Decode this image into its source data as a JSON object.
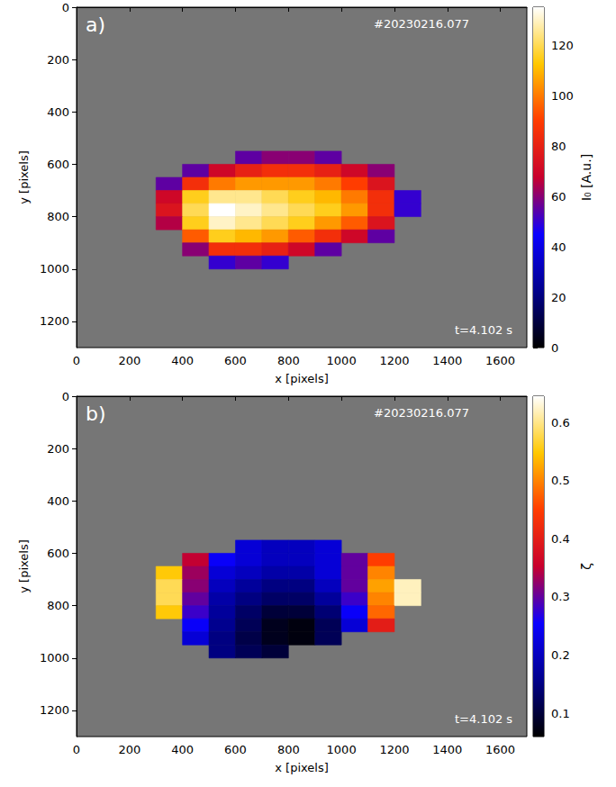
{
  "chart_data": [
    {
      "type": "heatmap",
      "panel": "a)",
      "x_label": "x [pixels]",
      "y_label": "y [pixels]",
      "xlim": [
        0,
        1700
      ],
      "ylim": [
        0,
        1300
      ],
      "xticks": [
        0,
        200,
        400,
        600,
        800,
        1000,
        1200,
        1400,
        1600
      ],
      "yticks": [
        0,
        200,
        400,
        600,
        800,
        1000,
        1200
      ],
      "annotations": [
        "#20230216.077",
        "t=4.102 s"
      ],
      "cells": {
        "x_edges": [
          300,
          400,
          500,
          600,
          700,
          800,
          900,
          1000,
          1100,
          1200,
          1300
        ],
        "y_edges": [
          550,
          600,
          650,
          700,
          750,
          800,
          850,
          900,
          950,
          1000
        ],
        "values": [
          [
            null,
            null,
            null,
            55,
            60,
            60,
            55,
            null,
            null,
            null
          ],
          [
            null,
            55,
            70,
            80,
            85,
            85,
            80,
            70,
            60,
            null
          ],
          [
            55,
            85,
            100,
            105,
            105,
            105,
            100,
            90,
            75,
            null
          ],
          [
            70,
            115,
            125,
            125,
            120,
            115,
            110,
            100,
            85,
            50
          ],
          [
            75,
            120,
            135,
            130,
            125,
            120,
            115,
            105,
            85,
            50
          ],
          [
            65,
            115,
            130,
            125,
            120,
            115,
            105,
            95,
            75,
            null
          ],
          [
            null,
            95,
            115,
            110,
            105,
            95,
            85,
            70,
            55,
            null
          ],
          [
            null,
            60,
            85,
            85,
            80,
            70,
            55,
            null,
            null,
            null
          ],
          [
            null,
            null,
            50,
            55,
            50,
            null,
            null,
            null,
            null,
            null
          ]
        ]
      },
      "colorbar": {
        "label": "I₀ [A.u.]",
        "range": [
          0,
          135
        ],
        "ticks": [
          0,
          20,
          40,
          60,
          80,
          100,
          120
        ]
      }
    },
    {
      "type": "heatmap",
      "panel": "b)",
      "x_label": "x [pixels]",
      "y_label": "y [pixels]",
      "xlim": [
        0,
        1700
      ],
      "ylim": [
        0,
        1300
      ],
      "xticks": [
        0,
        200,
        400,
        600,
        800,
        1000,
        1200,
        1400,
        1600
      ],
      "yticks": [
        0,
        200,
        400,
        600,
        800,
        1000,
        1200
      ],
      "annotations": [
        "#20230216.077",
        "t=4.102 s"
      ],
      "cells": {
        "x_edges": [
          300,
          400,
          500,
          600,
          700,
          800,
          900,
          1000,
          1100,
          1200,
          1300
        ],
        "y_edges": [
          550,
          600,
          650,
          700,
          750,
          800,
          850,
          900,
          950,
          1000
        ],
        "values": [
          [
            null,
            null,
            null,
            0.22,
            0.2,
            0.2,
            0.22,
            null,
            null,
            null
          ],
          [
            null,
            0.35,
            0.25,
            0.22,
            0.2,
            0.2,
            0.22,
            0.3,
            0.45,
            null
          ],
          [
            0.55,
            0.33,
            0.22,
            0.2,
            0.18,
            0.18,
            0.22,
            0.3,
            0.5,
            null
          ],
          [
            0.58,
            0.32,
            0.2,
            0.17,
            0.15,
            0.15,
            0.2,
            0.3,
            0.52,
            0.62
          ],
          [
            0.58,
            0.3,
            0.18,
            0.15,
            0.13,
            0.13,
            0.17,
            0.28,
            0.5,
            0.62
          ],
          [
            0.55,
            0.28,
            0.17,
            0.13,
            0.1,
            0.1,
            0.14,
            0.25,
            0.48,
            null
          ],
          [
            null,
            0.25,
            0.16,
            0.12,
            0.08,
            0.07,
            0.12,
            0.22,
            0.4,
            null
          ],
          [
            null,
            0.22,
            0.15,
            0.11,
            0.08,
            0.07,
            0.12,
            null,
            null,
            null
          ],
          [
            null,
            null,
            0.15,
            0.12,
            0.1,
            null,
            null,
            null,
            null,
            null
          ]
        ]
      },
      "colorbar": {
        "label": "ζ",
        "range": [
          0.06,
          0.645
        ],
        "ticks": [
          0.1,
          0.2,
          0.3,
          0.4,
          0.5,
          0.6
        ]
      }
    }
  ]
}
